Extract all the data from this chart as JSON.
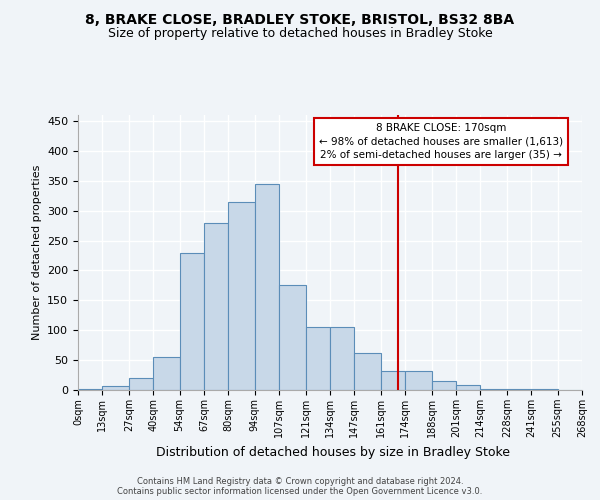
{
  "title": "8, BRAKE CLOSE, BRADLEY STOKE, BRISTOL, BS32 8BA",
  "subtitle": "Size of property relative to detached houses in Bradley Stoke",
  "xlabel": "Distribution of detached houses by size in Bradley Stoke",
  "ylabel": "Number of detached properties",
  "footer1": "Contains HM Land Registry data © Crown copyright and database right 2024.",
  "footer2": "Contains public sector information licensed under the Open Government Licence v3.0.",
  "annotation_title": "8 BRAKE CLOSE: 170sqm",
  "annotation_line1": "← 98% of detached houses are smaller (1,613)",
  "annotation_line2": "2% of semi-detached houses are larger (35) →",
  "property_size": 170,
  "bin_edges": [
    0,
    13,
    27,
    40,
    54,
    67,
    80,
    94,
    107,
    121,
    134,
    147,
    161,
    174,
    188,
    201,
    214,
    228,
    241,
    255,
    268
  ],
  "bar_heights": [
    2,
    6,
    20,
    55,
    230,
    280,
    315,
    345,
    175,
    105,
    105,
    62,
    32,
    32,
    15,
    8,
    2,
    1,
    1,
    0
  ],
  "bar_color": "#c8d8e8",
  "bar_edge_color": "#5b8db8",
  "vline_color": "#cc0000",
  "annotation_box_color": "#cc0000",
  "background_color": "#f0f4f8",
  "grid_color": "#ffffff",
  "ylim": [
    0,
    460
  ],
  "yticks": [
    0,
    50,
    100,
    150,
    200,
    250,
    300,
    350,
    400,
    450
  ]
}
